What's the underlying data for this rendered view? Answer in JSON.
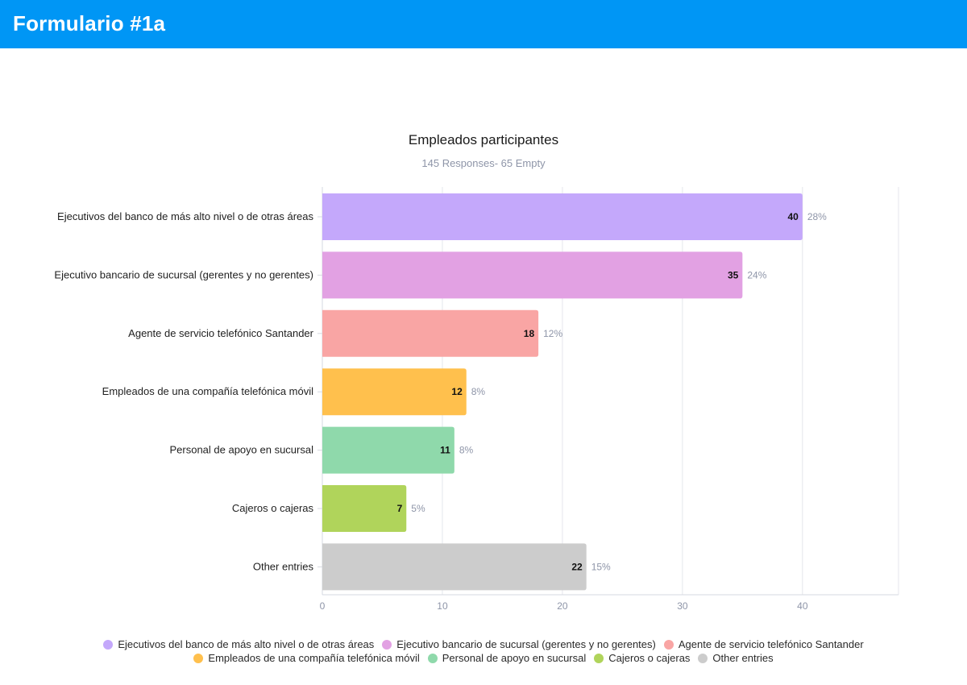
{
  "header": {
    "title": "Formulario #1a"
  },
  "chart_data": {
    "type": "bar",
    "orientation": "horizontal",
    "title": "Empleados participantes",
    "subtitle": "145 Responses- 65 Empty",
    "categories": [
      "Ejecutivos del banco de más alto nivel o de otras áreas",
      "Ejecutivo bancario de sucursal (gerentes y no gerentes)",
      "Agente de servicio telefónico Santander",
      "Empleados de una compañía telefónica móvil",
      "Personal de apoyo en sucursal",
      "Cajeros o cajeras",
      "Other entries"
    ],
    "values": [
      40,
      35,
      18,
      12,
      11,
      7,
      22
    ],
    "percent_labels": [
      "28%",
      "24%",
      "12%",
      "8%",
      "8%",
      "5%",
      "15%"
    ],
    "value_labels": [
      "40",
      "35",
      "18",
      "12",
      "11",
      "7",
      "22"
    ],
    "colors": [
      "#c4a8fb",
      "#e2a1e3",
      "#f9a5a4",
      "#ffc04d",
      "#8fd9ab",
      "#b0d45b",
      "#cccccc"
    ],
    "xlim": [
      0,
      48
    ],
    "xticks": [
      0,
      10,
      20,
      30,
      40
    ],
    "xtick_labels": [
      "0",
      "10",
      "20",
      "30",
      "40"
    ],
    "grid": true,
    "legend_position": "bottom"
  }
}
